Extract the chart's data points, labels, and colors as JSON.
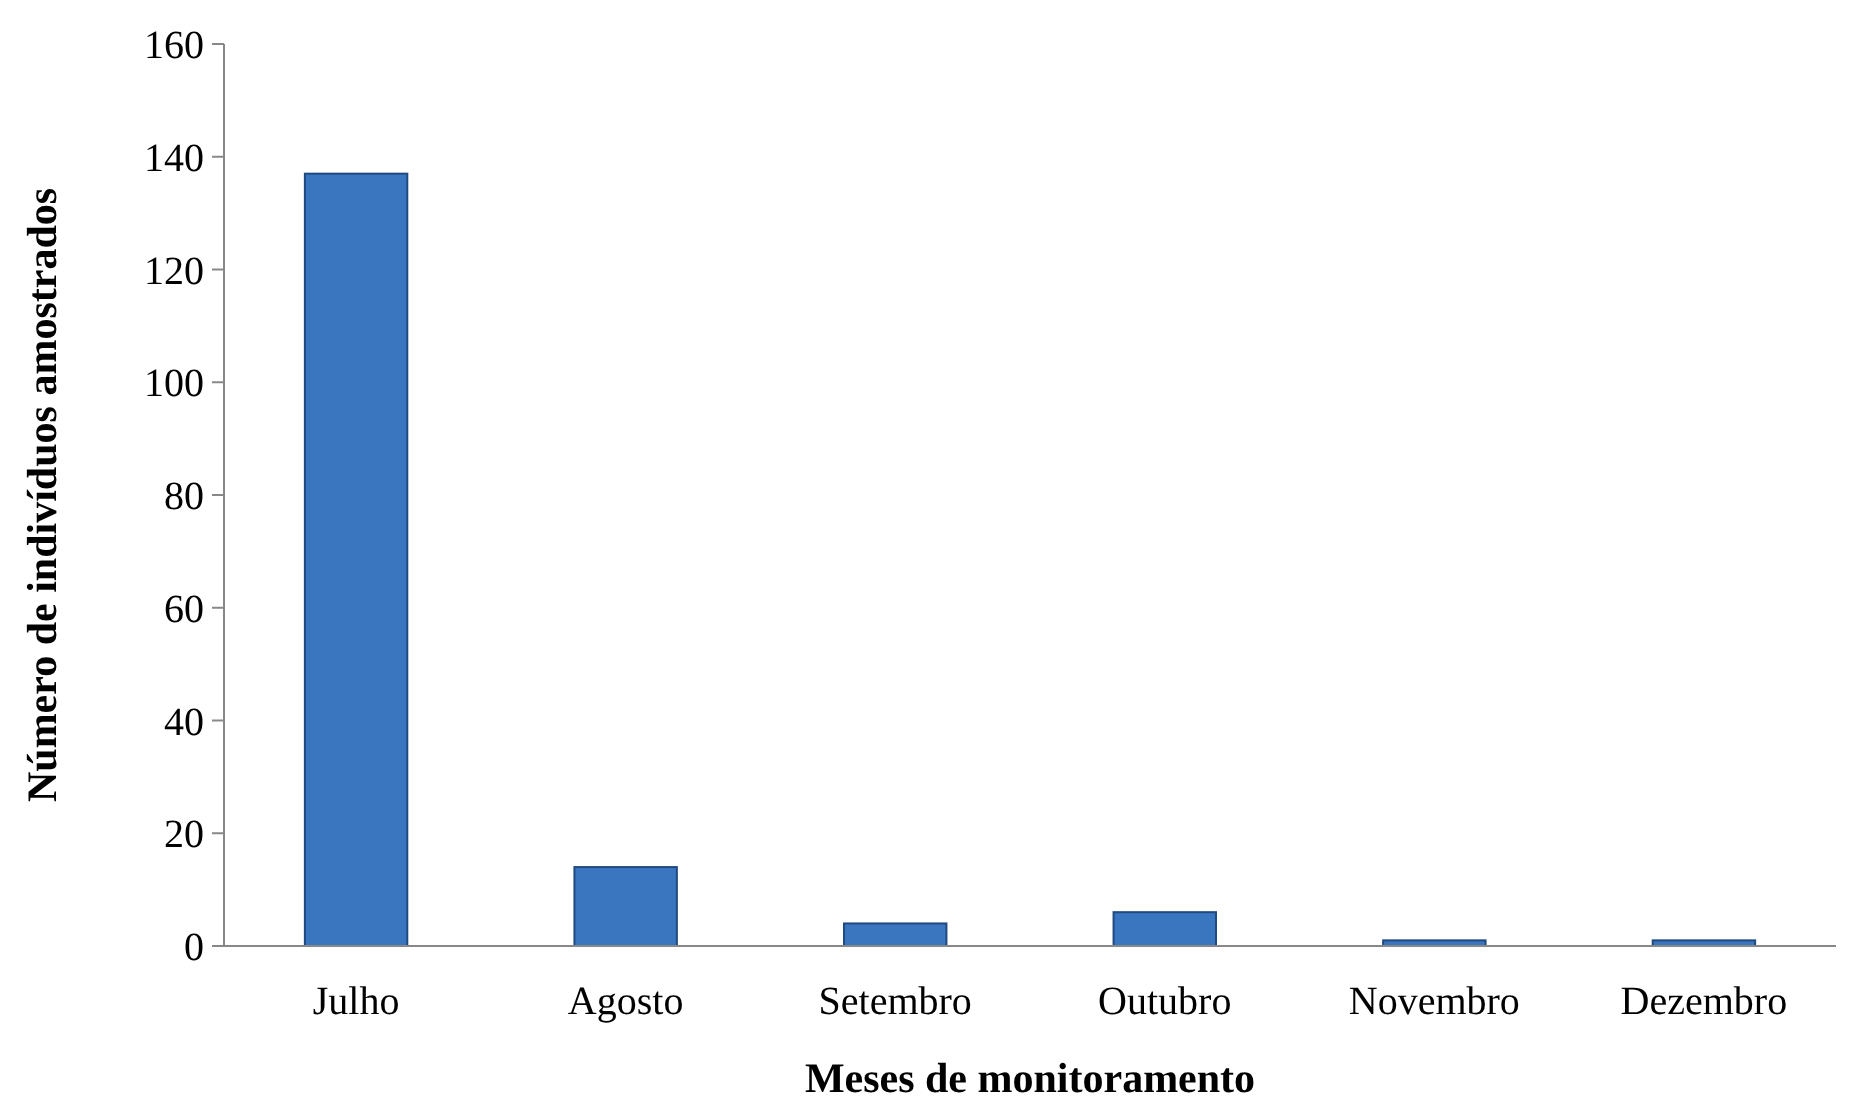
{
  "chart_data": {
    "type": "bar",
    "xlabel": "Meses de monitoramento",
    "ylabel": "Número de indivíduos amostrados",
    "categories": [
      "Julho",
      "Agosto",
      "Setembro",
      "Outubro",
      "Novembro",
      "Dezembro"
    ],
    "values": [
      137,
      14,
      4,
      6,
      1,
      1
    ],
    "color": "#3a75c0",
    "ylim": [
      0,
      160
    ],
    "yticks": [
      0,
      20,
      40,
      60,
      80,
      100,
      120,
      140,
      160
    ],
    "grid": false
  }
}
